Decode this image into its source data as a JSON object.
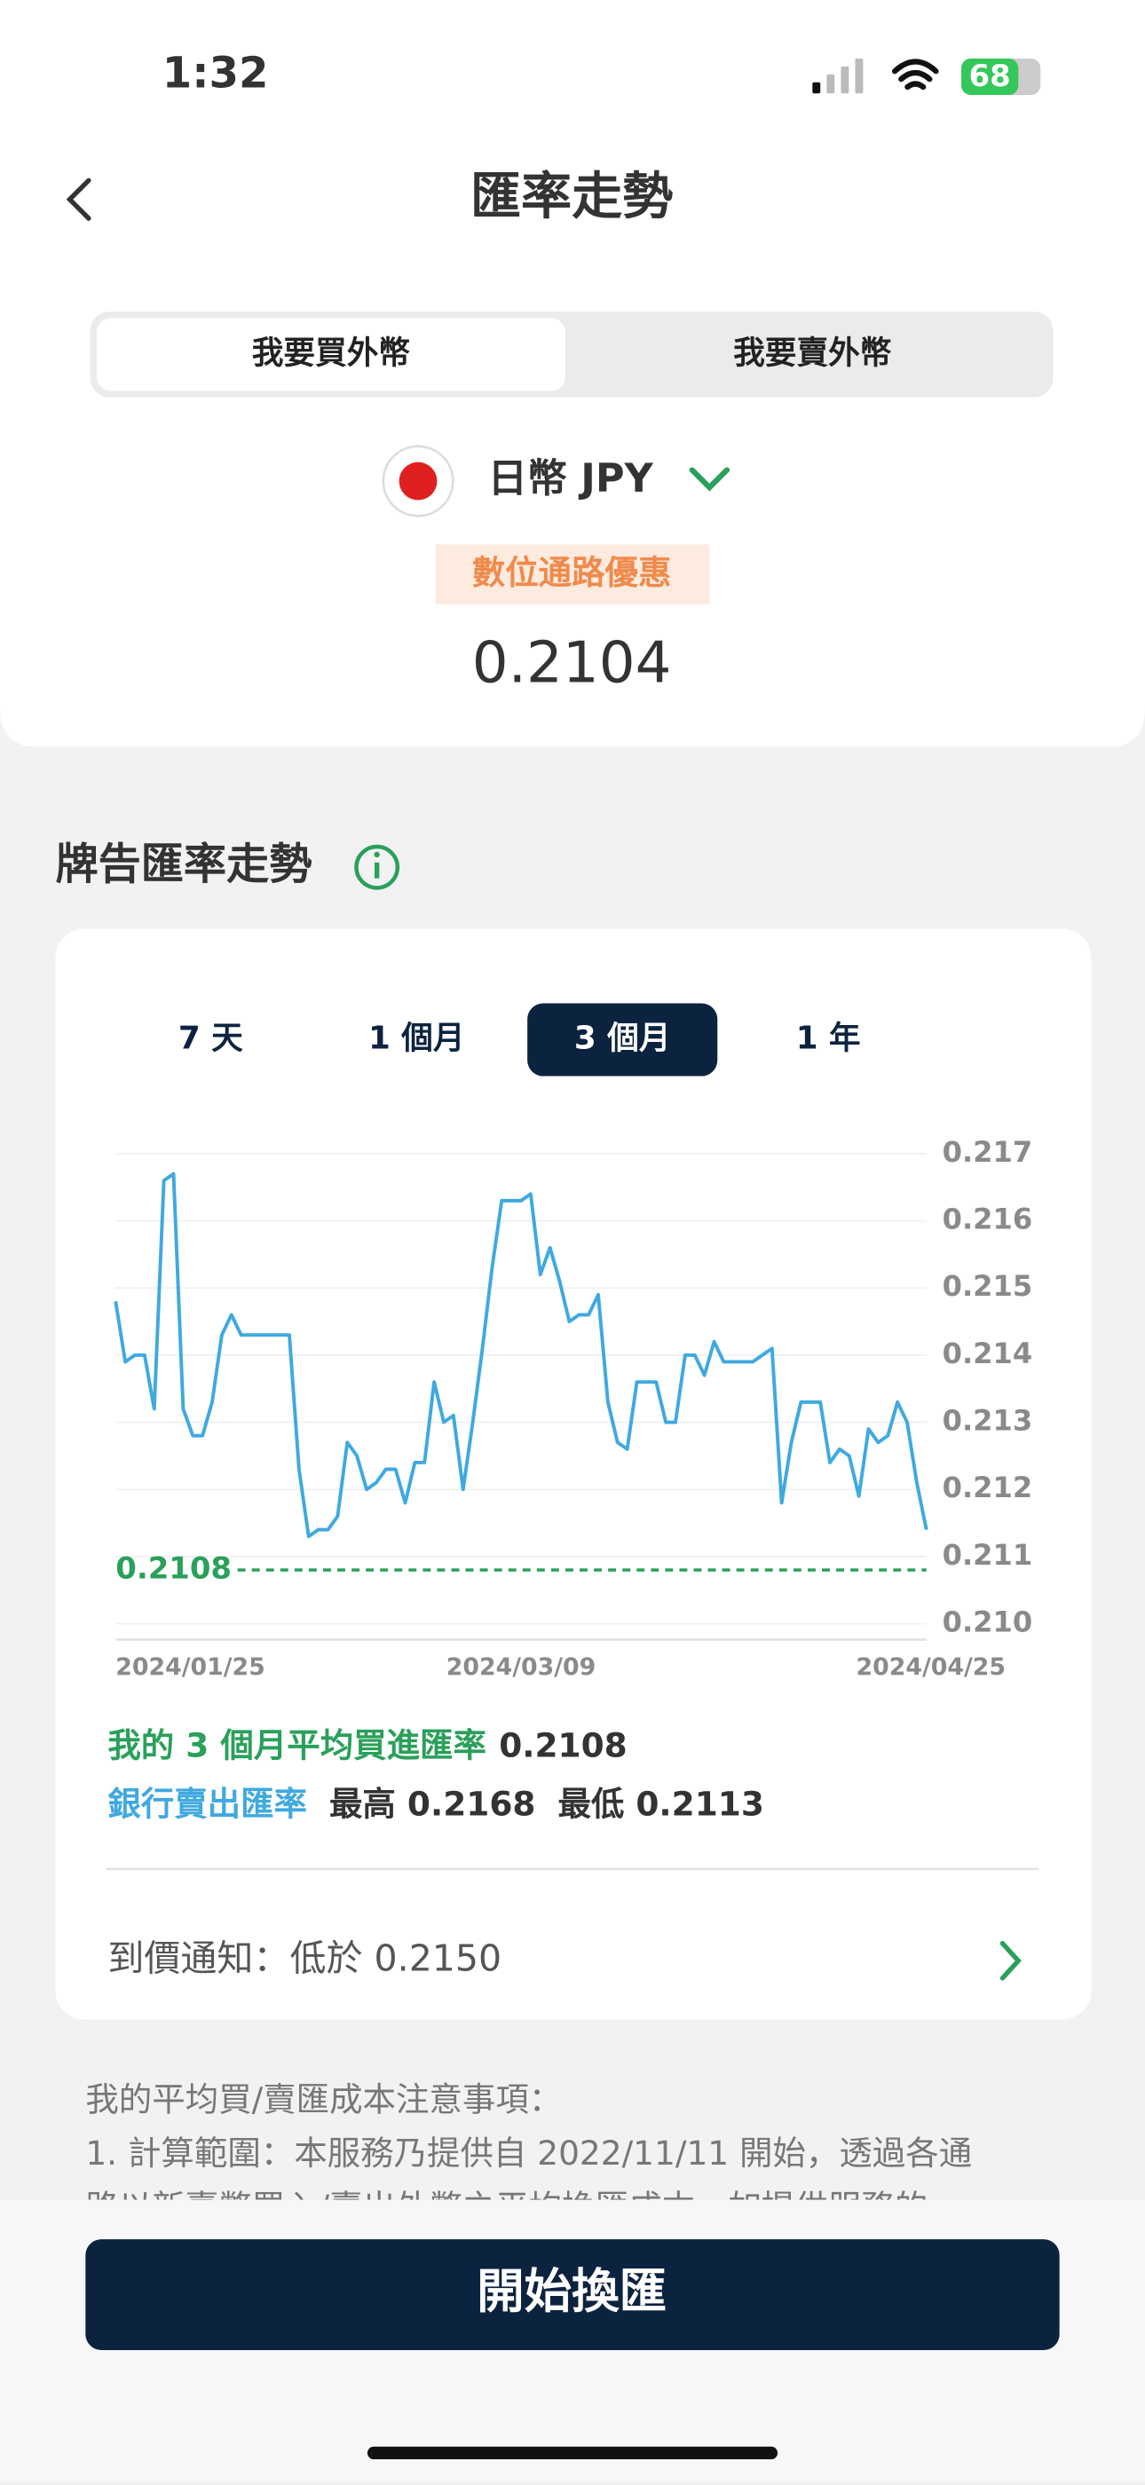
{
  "status_bar": {
    "time": "1:32",
    "battery": "68"
  },
  "header": {
    "title": "匯率走勢"
  },
  "tabs": [
    {
      "label": "我要買外幣",
      "selected": true
    },
    {
      "label": "我要賣外幣",
      "selected": false
    }
  ],
  "currency": {
    "name": "日幣 JPY",
    "badge": "數位通路優惠",
    "rate": "0.2104"
  },
  "section_title": "牌告匯率走勢",
  "periods": [
    {
      "label": "7 天",
      "selected": false
    },
    {
      "label": "1 個月",
      "selected": false
    },
    {
      "label": "3 個月",
      "selected": true
    },
    {
      "label": "1 年",
      "selected": false
    }
  ],
  "chart_data": {
    "type": "line",
    "categories": [
      "2024/01/25",
      null,
      null,
      null,
      null,
      null,
      null,
      null,
      null,
      null,
      null,
      null,
      null,
      null,
      null,
      null,
      null,
      null,
      null,
      null,
      null,
      null,
      null,
      null,
      null,
      null,
      null,
      null,
      null,
      null,
      null,
      null,
      null,
      null,
      null,
      null,
      null,
      null,
      null,
      null,
      null,
      null,
      "2024/03/09",
      null,
      null,
      null,
      null,
      null,
      null,
      null,
      null,
      null,
      null,
      null,
      null,
      null,
      null,
      null,
      null,
      null,
      null,
      null,
      null,
      null,
      null,
      null,
      null,
      null,
      null,
      null,
      null,
      null,
      null,
      null,
      null,
      null,
      null,
      null,
      null,
      null,
      null,
      null,
      null,
      null,
      "2024/04/25"
    ],
    "series": [
      {
        "color": "#3fa9e0",
        "values": [
          0.2148,
          0.2139,
          0.214,
          0.214,
          0.2132,
          0.2166,
          0.2167,
          0.2132,
          0.2128,
          0.2128,
          0.2133,
          0.2143,
          0.2146,
          0.2143,
          0.2143,
          0.2143,
          0.2143,
          0.2143,
          0.2143,
          0.2123,
          0.2113,
          0.2114,
          0.2114,
          0.2116,
          0.2127,
          0.2125,
          0.212,
          0.2121,
          0.2123,
          0.2123,
          0.2118,
          0.2124,
          0.2124,
          0.2136,
          0.213,
          0.2131,
          0.212,
          0.213,
          0.2141,
          0.2153,
          0.2163,
          0.2163,
          0.2163,
          0.2164,
          0.2152,
          0.2156,
          0.2151,
          0.2145,
          0.2146,
          0.2146,
          0.2149,
          0.2133,
          0.2127,
          0.2126,
          0.2136,
          0.2136,
          0.2136,
          0.213,
          0.213,
          0.214,
          0.214,
          0.2137,
          0.2142,
          0.2139,
          0.2139,
          0.2139,
          0.2139,
          0.214,
          0.2141,
          0.2118,
          0.2127,
          0.2133,
          0.2133,
          0.2133,
          0.2124,
          0.2126,
          0.2125,
          0.2119,
          0.2129,
          0.2127,
          0.2128,
          0.2133,
          0.213,
          0.2121,
          0.2114
        ]
      }
    ],
    "reference_line": {
      "value": 0.2108,
      "color": "#2aa05a"
    },
    "ylim": [
      0.21,
      0.217
    ],
    "yticks": [
      {
        "value": 0.21,
        "label": "0.210"
      },
      {
        "value": 0.211,
        "label": "0.211"
      },
      {
        "value": 0.212,
        "label": "0.212"
      },
      {
        "value": 0.213,
        "label": "0.213"
      },
      {
        "value": 0.214,
        "label": "0.214"
      },
      {
        "value": 0.215,
        "label": "0.215"
      },
      {
        "value": 0.216,
        "label": "0.216"
      },
      {
        "value": 0.217,
        "label": "0.217"
      }
    ],
    "grid": true
  },
  "summary": {
    "avg_label": "我的 3 個月平均買進匯率",
    "avg_value": "0.2108",
    "bank_label": "銀行賣出匯率",
    "high": "最高 0.2168",
    "low": "最低 0.2113"
  },
  "alert": "到價通知：低於 0.2150",
  "notes": [
    "我的平均買/賣匯成本注意事項：",
    "1. 計算範圍：本服務乃提供自 2022/11/11 開始，透過各通",
    "路以新臺幣買入/賣出外幣之平均換匯成本，如提供服務的"
  ],
  "button": "開始換匯"
}
